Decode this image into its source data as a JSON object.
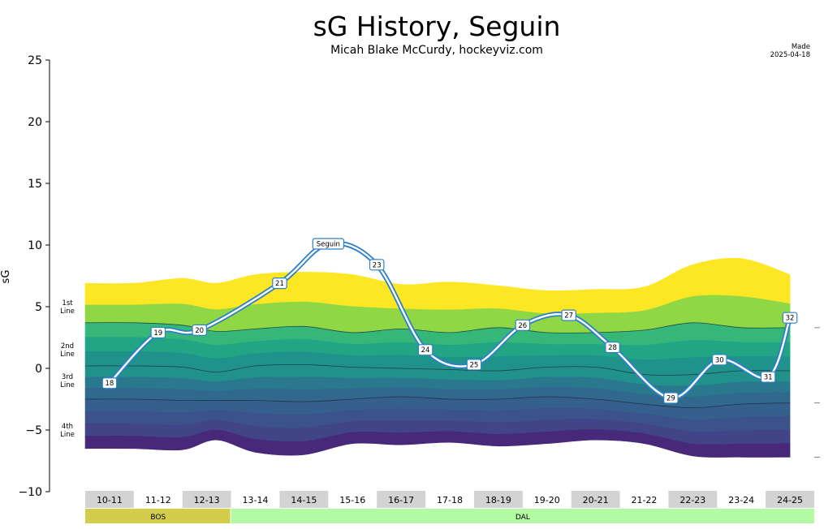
{
  "header": {
    "title": "sG History, Seguin",
    "subtitle": "Micah Blake McCurdy, hockeyviz.com",
    "made_label": "Made",
    "made_date": "2025-04-18"
  },
  "chart_data": {
    "type": "line",
    "title": "sG History, Seguin",
    "ylabel": "sG",
    "xlabel": "",
    "ylim": [
      -10,
      25
    ],
    "yticks": [
      "25",
      "20",
      "15",
      "10",
      "5",
      "0",
      "−5",
      "−10"
    ],
    "ytick_values": [
      25,
      20,
      15,
      10,
      5,
      0,
      -5,
      -10
    ],
    "seasons": [
      "10-11",
      "11-12",
      "12-13",
      "13-14",
      "14-15",
      "15-16",
      "16-17",
      "17-18",
      "18-19",
      "19-20",
      "20-21",
      "21-22",
      "22-23",
      "23-24",
      "24-25"
    ],
    "teams": [
      {
        "name": "BOS",
        "from_season": 0,
        "to_season": 2,
        "color": "#d4cd4b"
      },
      {
        "name": "DAL",
        "from_season": 3,
        "to_season": 14,
        "color": "#b3fba3"
      }
    ],
    "band_labels": [
      {
        "line1": "1st",
        "line2": "Line",
        "y": 5
      },
      {
        "line1": "2nd",
        "line2": "Line",
        "y": 1.5
      },
      {
        "line1": "3rd",
        "line2": "Line",
        "y": -1
      },
      {
        "line1": "4th",
        "line2": "Line",
        "y": -5
      }
    ],
    "bands": {
      "x": [
        -0.5,
        0.5,
        1.5,
        2.2,
        3,
        4,
        5,
        6,
        7,
        8,
        9,
        10,
        11,
        12,
        13,
        14
      ],
      "top": [
        6.9,
        6.9,
        7.3,
        6.9,
        7.6,
        7.8,
        7.6,
        6.8,
        7.0,
        6.7,
        6.3,
        6.4,
        6.6,
        8.4,
        8.9,
        7.6
      ],
      "bottom": [
        -6.5,
        -6.5,
        -6.6,
        -5.8,
        -6.8,
        -7.0,
        -6.1,
        -6.2,
        -6.0,
        -6.3,
        -6.1,
        -5.8,
        -6.1,
        -7.1,
        -7.2,
        -7.2
      ],
      "l1": [
        3.7,
        3.7,
        3.5,
        3.0,
        3.2,
        3.4,
        2.9,
        3.2,
        2.9,
        3.3,
        2.9,
        2.9,
        3.1,
        3.7,
        3.3,
        3.3
      ],
      "l2": [
        0.2,
        0.2,
        0.1,
        -0.3,
        0.2,
        0.3,
        0.1,
        0.0,
        -0.1,
        -0.2,
        0.1,
        0.1,
        -0.5,
        -0.5,
        -0.2,
        -0.2
      ],
      "l3": [
        -2.5,
        -2.5,
        -2.6,
        -2.6,
        -2.6,
        -2.7,
        -2.5,
        -2.3,
        -2.5,
        -2.5,
        -2.3,
        -2.5,
        -2.9,
        -3.2,
        -2.9,
        -2.8
      ],
      "colors": [
        "#fde725",
        "#8fd744",
        "#35b779",
        "#21a585",
        "#1f938b",
        "#21918c",
        "#2a788e",
        "#30688e",
        "#355f8d",
        "#3b528b",
        "#414487",
        "#482878",
        "#440154"
      ]
    },
    "points": [
      {
        "season": 0,
        "y": -1.2,
        "label": "18"
      },
      {
        "season": 1,
        "y": 2.9,
        "label": "19"
      },
      {
        "season": 1.85,
        "y": 3.1,
        "label": "20"
      },
      {
        "season": 3.5,
        "y": 6.9,
        "label": "21"
      },
      {
        "season": 4.5,
        "y": 10.1,
        "label": "Seguin"
      },
      {
        "season": 5.5,
        "y": 8.4,
        "label": "23"
      },
      {
        "season": 6.5,
        "y": 1.5,
        "label": "24"
      },
      {
        "season": 7.5,
        "y": 0.3,
        "label": "25"
      },
      {
        "season": 8.5,
        "y": 3.5,
        "label": "26"
      },
      {
        "season": 9.45,
        "y": 4.3,
        "label": "27"
      },
      {
        "season": 10.35,
        "y": 1.7,
        "label": "28"
      },
      {
        "season": 11.55,
        "y": -2.4,
        "label": "29"
      },
      {
        "season": 12.55,
        "y": 0.7,
        "label": "30"
      },
      {
        "season": 13.55,
        "y": -0.7,
        "label": "31"
      },
      {
        "season": 14,
        "y": 4.1,
        "label": "32"
      }
    ],
    "line_color": "#2e80c5"
  }
}
